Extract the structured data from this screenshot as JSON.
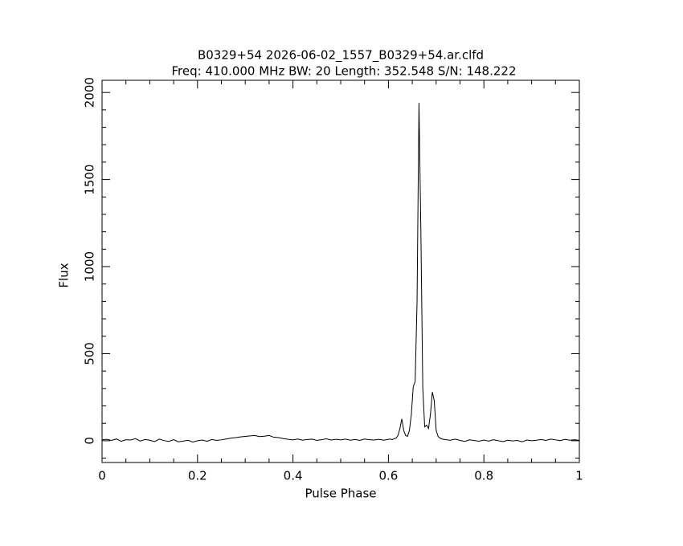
{
  "chart_data": {
    "type": "line",
    "title": "B0329+54 2026-06-02_1557_B0329+54.ar.clfd",
    "subtitle": "Freq: 410.000 MHz BW: 20 Length: 352.548 S/N: 148.222",
    "x_label": "Pulse Phase",
    "y_label": "Flux",
    "xlim": [
      0,
      1
    ],
    "ylim": [
      -125,
      2070
    ],
    "xticks": [
      0,
      0.2,
      0.4,
      0.6,
      0.8,
      1
    ],
    "yticks": [
      0,
      500,
      1000,
      1500,
      2000
    ],
    "xminorticks": [
      0.05,
      0.1,
      0.15,
      0.25,
      0.3,
      0.35,
      0.45,
      0.5,
      0.55,
      0.65,
      0.7,
      0.75,
      0.85,
      0.9,
      0.95
    ],
    "yminorticks": [
      -100,
      100,
      200,
      300,
      400,
      600,
      700,
      800,
      900,
      1100,
      1200,
      1300,
      1400,
      1600,
      1700,
      1800,
      1900
    ],
    "color": "#000000",
    "x": [
      0,
      0.01,
      0.02,
      0.03,
      0.04,
      0.05,
      0.06,
      0.07,
      0.08,
      0.09,
      0.1,
      0.11,
      0.12,
      0.13,
      0.14,
      0.15,
      0.16,
      0.17,
      0.18,
      0.19,
      0.2,
      0.21,
      0.22,
      0.23,
      0.24,
      0.25,
      0.26,
      0.27,
      0.28,
      0.29,
      0.3,
      0.31,
      0.32,
      0.33,
      0.34,
      0.35,
      0.36,
      0.37,
      0.38,
      0.39,
      0.4,
      0.41,
      0.42,
      0.43,
      0.44,
      0.45,
      0.46,
      0.47,
      0.48,
      0.49,
      0.5,
      0.51,
      0.52,
      0.53,
      0.54,
      0.55,
      0.56,
      0.57,
      0.58,
      0.59,
      0.6,
      0.604,
      0.608,
      0.612,
      0.616,
      0.62,
      0.624,
      0.628,
      0.632,
      0.636,
      0.64,
      0.644,
      0.648,
      0.652,
      0.656,
      0.66,
      0.664,
      0.668,
      0.672,
      0.676,
      0.68,
      0.684,
      0.688,
      0.692,
      0.696,
      0.7,
      0.704,
      0.708,
      0.712,
      0.716,
      0.72,
      0.73,
      0.74,
      0.75,
      0.76,
      0.77,
      0.78,
      0.79,
      0.8,
      0.81,
      0.82,
      0.83,
      0.84,
      0.85,
      0.86,
      0.87,
      0.88,
      0.89,
      0.9,
      0.91,
      0.92,
      0.93,
      0.94,
      0.95,
      0.96,
      0.97,
      0.98,
      0.99,
      1
    ],
    "values": [
      5,
      8,
      2,
      10,
      -3,
      6,
      4,
      12,
      -2,
      7,
      3,
      -5,
      9,
      1,
      -4,
      6,
      -6,
      -2,
      3,
      -8,
      0,
      4,
      -3,
      7,
      2,
      5,
      10,
      15,
      18,
      22,
      25,
      28,
      30,
      24,
      26,
      30,
      20,
      18,
      12,
      8,
      5,
      10,
      3,
      7,
      9,
      2,
      6,
      11,
      4,
      8,
      5,
      9,
      3,
      7,
      2,
      10,
      6,
      4,
      8,
      3,
      8,
      10,
      6,
      12,
      15,
      30,
      70,
      125,
      60,
      30,
      25,
      60,
      150,
      310,
      340,
      800,
      1940,
      1200,
      300,
      80,
      90,
      70,
      150,
      280,
      230,
      60,
      25,
      15,
      10,
      8,
      6,
      3,
      9,
      2,
      -4,
      5,
      1,
      -3,
      4,
      -2,
      6,
      0,
      -5,
      3,
      -1,
      2,
      -6,
      4,
      0,
      3,
      7,
      2,
      9,
      5,
      1,
      8,
      3,
      6,
      2
    ]
  }
}
